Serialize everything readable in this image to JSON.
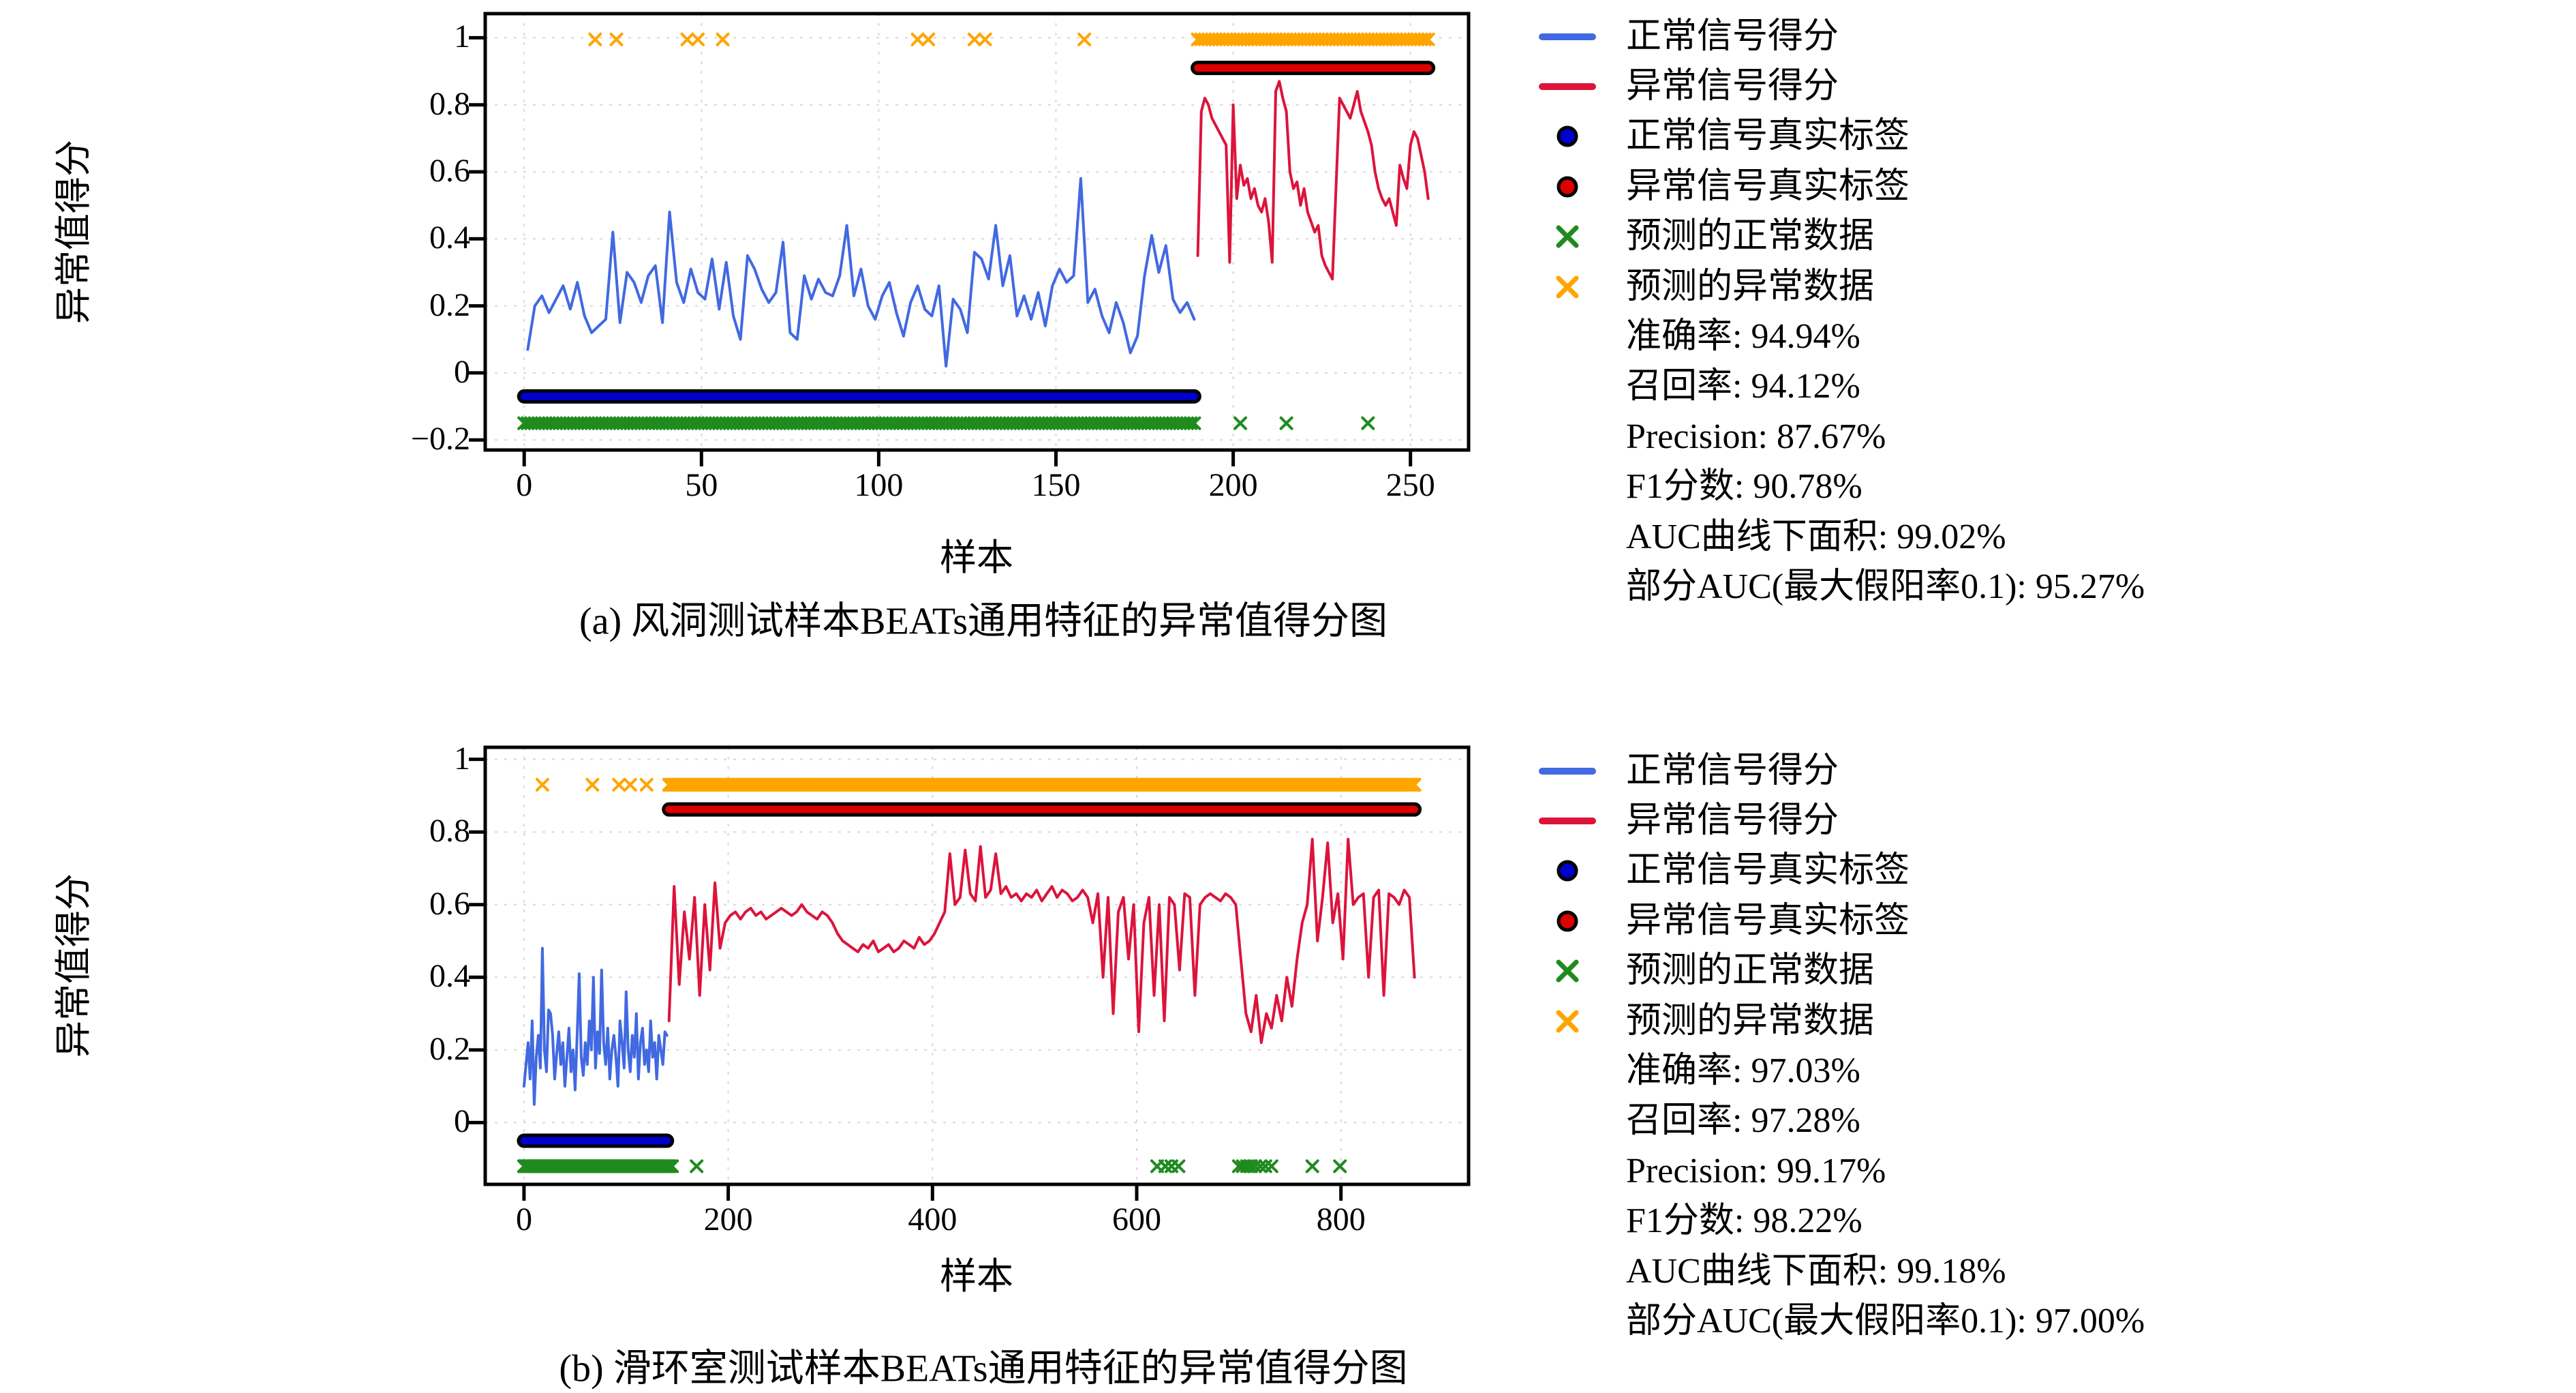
{
  "figure": {
    "background": "#ffffff"
  },
  "colors": {
    "normal_line": "#4169e1",
    "anomaly_line": "#dc143c",
    "true_normal": "#0000cd",
    "true_anomaly": "#dd0000",
    "pred_normal": "#1f8b1f",
    "pred_anomaly": "#ffa500",
    "grid": "#d8d8d8",
    "axis": "#000000"
  },
  "chart_data": [
    {
      "id": "a",
      "type": "line",
      "caption": "(a) 风洞测试样本BEATs通用特征的异常值得分图",
      "xlabel": "样本",
      "ylabel": "异常值得分",
      "xlim": [
        -11,
        266.4
      ],
      "ylim": [
        -0.23,
        1.072
      ],
      "xticks": [
        0,
        50,
        100,
        150,
        200,
        250
      ],
      "yticks": [
        -0.2,
        0,
        0.2,
        0.4,
        0.6,
        0.8,
        1.0
      ],
      "grid": true,
      "legend_position": "right",
      "series": [
        {
          "name": "正常信号得分",
          "role": "normal_line",
          "x0": 1,
          "dx": 2,
          "values": [
            0.07,
            0.2,
            0.23,
            0.18,
            0.22,
            0.26,
            0.19,
            0.27,
            0.17,
            0.12,
            0.14,
            0.16,
            0.42,
            0.15,
            0.3,
            0.27,
            0.21,
            0.29,
            0.32,
            0.15,
            0.48,
            0.27,
            0.21,
            0.31,
            0.24,
            0.22,
            0.34,
            0.19,
            0.33,
            0.17,
            0.1,
            0.35,
            0.31,
            0.25,
            0.21,
            0.24,
            0.39,
            0.12,
            0.1,
            0.29,
            0.22,
            0.28,
            0.24,
            0.23,
            0.29,
            0.44,
            0.23,
            0.31,
            0.2,
            0.16,
            0.23,
            0.27,
            0.18,
            0.11,
            0.21,
            0.26,
            0.19,
            0.17,
            0.26,
            0.02,
            0.22,
            0.19,
            0.12,
            0.36,
            0.34,
            0.28,
            0.44,
            0.26,
            0.35,
            0.17,
            0.23,
            0.16,
            0.24,
            0.14,
            0.26,
            0.31,
            0.27,
            0.29,
            0.58,
            0.21,
            0.25,
            0.17,
            0.12,
            0.21,
            0.15,
            0.06,
            0.11,
            0.29,
            0.41,
            0.3,
            0.38,
            0.22,
            0.18,
            0.21,
            0.16
          ]
        },
        {
          "name": "异常信号得分",
          "role": "anomaly_line",
          "x0": 190,
          "dx": 1,
          "values": [
            0.35,
            0.78,
            0.82,
            0.8,
            0.76,
            0.74,
            0.72,
            0.7,
            0.68,
            0.33,
            0.8,
            0.52,
            0.62,
            0.56,
            0.58,
            0.52,
            0.55,
            0.5,
            0.48,
            0.52,
            0.45,
            0.33,
            0.84,
            0.87,
            0.82,
            0.78,
            0.6,
            0.55,
            0.57,
            0.5,
            0.55,
            0.48,
            0.45,
            0.42,
            0.44,
            0.35,
            0.32,
            0.3,
            0.28,
            0.55,
            0.82,
            0.8,
            0.78,
            0.76,
            0.8,
            0.84,
            0.78,
            0.75,
            0.72,
            0.68,
            0.6,
            0.55,
            0.52,
            0.5,
            0.52,
            0.48,
            0.44,
            0.62,
            0.58,
            0.55,
            0.68,
            0.72,
            0.7,
            0.65,
            0.6,
            0.52
          ]
        }
      ],
      "marker_rows": [
        {
          "name": "正常信号真实标签",
          "role": "true_normal",
          "style": "dots",
          "y": -0.07,
          "x_start": 0,
          "x_end": 189,
          "extra_xs": []
        },
        {
          "name": "异常信号真实标签",
          "role": "true_anomaly",
          "style": "dots",
          "y": 0.91,
          "x_start": 190,
          "x_end": 255,
          "extra_xs": []
        },
        {
          "name": "预测的正常数据",
          "role": "pred_normal",
          "style": "x",
          "y": -0.15,
          "x_start": 0,
          "x_end": 189,
          "extra_xs": [
            202,
            215,
            238
          ]
        },
        {
          "name": "预测的异常数据",
          "role": "pred_anomaly",
          "style": "x",
          "y": 0.995,
          "x_start": 190,
          "x_end": 255,
          "extra_xs": [
            20,
            26,
            46,
            49,
            56,
            111,
            114,
            127,
            130,
            158
          ]
        }
      ],
      "legend": [
        {
          "label": "正常信号得分",
          "swatch": "line",
          "role": "normal_line"
        },
        {
          "label": "异常信号得分",
          "swatch": "line",
          "role": "anomaly_line"
        },
        {
          "label": "正常信号真实标签",
          "swatch": "dot",
          "role": "true_normal"
        },
        {
          "label": "异常信号真实标签",
          "swatch": "dot",
          "role": "true_anomaly"
        },
        {
          "label": "预测的正常数据",
          "swatch": "x",
          "role": "pred_normal"
        },
        {
          "label": "预测的异常数据",
          "swatch": "x",
          "role": "pred_anomaly"
        }
      ],
      "metrics": [
        "准确率: 94.94%",
        "召回率: 94.12%",
        "Precision: 87.67%",
        "F1分数: 90.78%",
        "AUC曲线下面积: 99.02%",
        "部分AUC(最大假阳率0.1): 95.27%"
      ]
    },
    {
      "id": "b",
      "type": "line",
      "caption": "(b) 滑环室测试样本BEATs通用特征的异常值得分图",
      "xlabel": "样本",
      "ylabel": "异常值得分",
      "xlim": [
        -38,
        925
      ],
      "ylim": [
        -0.17,
        1.033
      ],
      "xticks": [
        0,
        200,
        400,
        600,
        800
      ],
      "yticks": [
        0,
        0.2,
        0.4,
        0.6,
        0.8,
        1.0
      ],
      "grid": true,
      "legend_position": "right",
      "series": [
        {
          "name": "正常信号得分",
          "role": "normal_line",
          "x0": 0,
          "dx": 2,
          "values": [
            0.1,
            0.16,
            0.22,
            0.12,
            0.28,
            0.05,
            0.18,
            0.24,
            0.15,
            0.48,
            0.2,
            0.14,
            0.31,
            0.3,
            0.24,
            0.12,
            0.19,
            0.25,
            0.16,
            0.22,
            0.1,
            0.18,
            0.26,
            0.14,
            0.2,
            0.09,
            0.24,
            0.41,
            0.18,
            0.13,
            0.22,
            0.16,
            0.28,
            0.2,
            0.4,
            0.15,
            0.25,
            0.19,
            0.42,
            0.22,
            0.16,
            0.26,
            0.12,
            0.2,
            0.24,
            0.18,
            0.1,
            0.28,
            0.22,
            0.15,
            0.36,
            0.2,
            0.14,
            0.24,
            0.18,
            0.3,
            0.12,
            0.22,
            0.26,
            0.16,
            0.2,
            0.14,
            0.28,
            0.18,
            0.22,
            0.12,
            0.24,
            0.2,
            0.16,
            0.25,
            0.24
          ]
        },
        {
          "name": "异常信号得分",
          "role": "anomaly_line",
          "x0": 142,
          "dx": 5,
          "values": [
            0.28,
            0.65,
            0.38,
            0.58,
            0.45,
            0.62,
            0.35,
            0.6,
            0.42,
            0.66,
            0.48,
            0.55,
            0.57,
            0.58,
            0.56,
            0.58,
            0.59,
            0.57,
            0.58,
            0.56,
            0.57,
            0.58,
            0.59,
            0.58,
            0.57,
            0.58,
            0.6,
            0.58,
            0.57,
            0.56,
            0.58,
            0.57,
            0.55,
            0.52,
            0.5,
            0.49,
            0.48,
            0.47,
            0.49,
            0.48,
            0.5,
            0.47,
            0.48,
            0.49,
            0.47,
            0.48,
            0.5,
            0.49,
            0.48,
            0.51,
            0.49,
            0.5,
            0.52,
            0.55,
            0.58,
            0.74,
            0.6,
            0.62,
            0.75,
            0.63,
            0.61,
            0.76,
            0.62,
            0.64,
            0.74,
            0.63,
            0.65,
            0.62,
            0.63,
            0.61,
            0.63,
            0.62,
            0.64,
            0.61,
            0.63,
            0.65,
            0.62,
            0.64,
            0.63,
            0.61,
            0.62,
            0.64,
            0.62,
            0.55,
            0.63,
            0.4,
            0.62,
            0.3,
            0.58,
            0.62,
            0.45,
            0.6,
            0.25,
            0.55,
            0.62,
            0.35,
            0.6,
            0.28,
            0.62,
            0.6,
            0.42,
            0.63,
            0.62,
            0.35,
            0.6,
            0.62,
            0.63,
            0.62,
            0.61,
            0.63,
            0.62,
            0.6,
            0.45,
            0.3,
            0.25,
            0.35,
            0.22,
            0.3,
            0.26,
            0.35,
            0.28,
            0.4,
            0.32,
            0.45,
            0.55,
            0.6,
            0.78,
            0.5,
            0.62,
            0.77,
            0.55,
            0.63,
            0.45,
            0.78,
            0.6,
            0.62,
            0.63,
            0.4,
            0.62,
            0.64,
            0.35,
            0.63,
            0.62,
            0.6,
            0.64,
            0.62,
            0.4
          ]
        }
      ],
      "marker_rows": [
        {
          "name": "正常信号真实标签",
          "role": "true_normal",
          "style": "dots",
          "y": -0.05,
          "x_start": 0,
          "x_end": 140,
          "extra_xs": []
        },
        {
          "name": "异常信号真实标签",
          "role": "true_anomaly",
          "style": "dots",
          "y": 0.862,
          "x_start": 142,
          "x_end": 872,
          "extra_xs": []
        },
        {
          "name": "预测的正常数据",
          "role": "pred_normal",
          "style": "x",
          "y": -0.12,
          "x_start": 0,
          "x_end": 143,
          "extra_xs": [
            145,
            169,
            620,
            628,
            634,
            641,
            700,
            704,
            708,
            712,
            716,
            721,
            726,
            732,
            772,
            799
          ]
        },
        {
          "name": "预测的异常数据",
          "role": "pred_anomaly",
          "style": "x",
          "y": 0.93,
          "x_start": 142,
          "x_end": 872,
          "extra_xs": [
            18,
            67,
            93,
            104,
            120
          ]
        }
      ],
      "legend": [
        {
          "label": "正常信号得分",
          "swatch": "line",
          "role": "normal_line"
        },
        {
          "label": "异常信号得分",
          "swatch": "line",
          "role": "anomaly_line"
        },
        {
          "label": "正常信号真实标签",
          "swatch": "dot",
          "role": "true_normal"
        },
        {
          "label": "异常信号真实标签",
          "swatch": "dot",
          "role": "true_anomaly"
        },
        {
          "label": "预测的正常数据",
          "swatch": "x",
          "role": "pred_normal"
        },
        {
          "label": "预测的异常数据",
          "swatch": "x",
          "role": "pred_anomaly"
        }
      ],
      "metrics": [
        "准确率: 97.03%",
        "召回率: 97.28%",
        "Precision: 99.17%",
        "F1分数: 98.22%",
        "AUC曲线下面积: 99.18%",
        "部分AUC(最大假阳率0.1): 97.00%"
      ]
    }
  ]
}
